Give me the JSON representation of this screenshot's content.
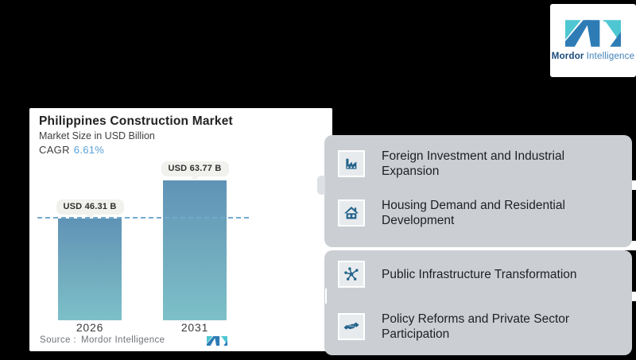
{
  "brand": {
    "name_bold": "Mordor",
    "name_light": "Intelligence"
  },
  "chart_panel": {
    "title": "Philippines Construction Market",
    "subtitle": "Market Size in USD Billion",
    "cagr_label": "CAGR",
    "cagr_value": "6.61%",
    "source_label": "Source :",
    "source_value": "Mordor Intelligence"
  },
  "chart_data": {
    "type": "bar",
    "title": "Philippines Construction Market",
    "subtitle": "Market Size in USD Billion",
    "unit": "USD Billion",
    "cagr": "6.61%",
    "categories": [
      "2026",
      "2031"
    ],
    "values": [
      46.31,
      63.77
    ],
    "value_labels": [
      "USD 46.31 B",
      "USD 63.77 B"
    ],
    "reference_line_value": 46.31,
    "reference_line_style": "dashed",
    "grid": "off",
    "legend": "none",
    "source": "Source : Mordor Intelligence"
  },
  "drivers": {
    "items": [
      {
        "icon": "factory-icon",
        "text": "Foreign Investment and Industrial Expansion"
      },
      {
        "icon": "house-icon",
        "text": "Housing Demand and Residential Development"
      },
      {
        "icon": "network-icon",
        "text": "Public Infrastructure Transformation"
      },
      {
        "icon": "handshake-icon",
        "text": "Policy Reforms and Private Sector Participation"
      }
    ]
  },
  "colors": {
    "background": "#000000",
    "panel_white": "#ffffff",
    "card_gray": "#cbcfd4",
    "icon_blue": "#25648c",
    "bar_gradient_top": "#5f93b6",
    "bar_gradient_bottom": "#7cc0c8",
    "dashed_line": "#74a9cf",
    "cagr_accent": "#58a0d6",
    "logo_blue": "#2d7cb5",
    "logo_teal": "#4ec7d2",
    "logo_text_dark": "#17497b",
    "logo_text_light": "#3f7fb9"
  }
}
